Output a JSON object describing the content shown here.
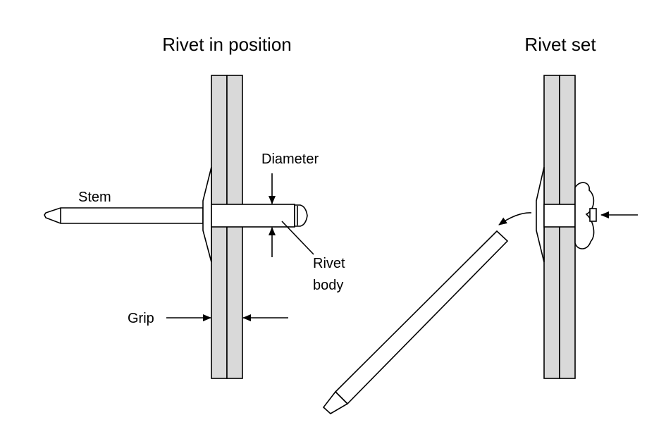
{
  "titles": {
    "left": "Rivet in position",
    "right": "Rivet set"
  },
  "labels": {
    "stem": "Stem",
    "diameter": "Diameter",
    "rivet_body_line1": "Rivet",
    "rivet_body_line2": "body",
    "grip": "Grip"
  },
  "colors": {
    "plate_fill": "#d9d9d9",
    "stroke": "#000000",
    "background": "#ffffff"
  }
}
